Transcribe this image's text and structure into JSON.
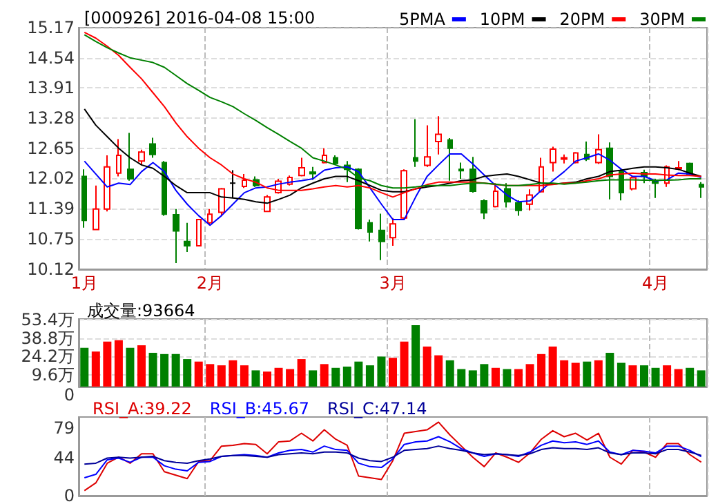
{
  "chart_data": [
    {
      "type": "candlestick",
      "title": "[000926] 2016-04-08 15:00",
      "categories": [
        "1月",
        null,
        null,
        null,
        null,
        null,
        null,
        null,
        null,
        null,
        null,
        "2月",
        null,
        null,
        null,
        null,
        null,
        null,
        null,
        null,
        null,
        null,
        null,
        null,
        null,
        null,
        null,
        "3月",
        null,
        null,
        null,
        null,
        null,
        null,
        null,
        null,
        null,
        null,
        null,
        null,
        null,
        null,
        null,
        null,
        null,
        null,
        null,
        null,
        null,
        null,
        "4月",
        null,
        null,
        null,
        null
      ],
      "ohlc": [
        [
          12.06,
          12.21,
          10.99,
          11.14
        ],
        [
          10.95,
          11.87,
          10.94,
          11.38
        ],
        [
          11.38,
          12.5,
          11.33,
          12.26
        ],
        [
          12.13,
          12.84,
          12.06,
          12.5
        ],
        [
          12.21,
          12.97,
          11.97,
          12.01
        ],
        [
          12.38,
          12.62,
          12.3,
          12.57
        ],
        [
          12.74,
          12.87,
          12.45,
          12.52
        ],
        [
          12.35,
          12.38,
          11.24,
          11.27
        ],
        [
          11.26,
          11.38,
          10.25,
          10.92
        ],
        [
          10.7,
          11.09,
          10.48,
          10.61
        ],
        [
          10.61,
          11.17,
          10.6,
          11.16
        ],
        [
          11.09,
          11.38,
          11.04,
          11.27
        ],
        [
          11.31,
          11.82,
          11.24,
          11.8
        ],
        [
          11.92,
          12.19,
          11.61,
          11.92
        ],
        [
          11.85,
          12.11,
          11.82,
          11.98
        ],
        [
          11.99,
          12.06,
          11.84,
          11.87
        ],
        [
          11.33,
          11.67,
          11.33,
          11.63
        ],
        [
          11.72,
          12.01,
          11.7,
          11.96
        ],
        [
          11.9,
          12.08,
          11.87,
          12.04
        ],
        [
          12.08,
          12.45,
          12.06,
          12.24
        ],
        [
          12.15,
          12.26,
          11.99,
          12.12
        ],
        [
          12.35,
          12.65,
          12.33,
          12.5
        ],
        [
          12.45,
          12.5,
          12.3,
          12.33
        ],
        [
          12.29,
          12.38,
          11.94,
          12.21
        ],
        [
          12.21,
          12.23,
          10.95,
          10.97
        ],
        [
          11.09,
          11.16,
          10.7,
          10.9
        ],
        [
          10.93,
          11.28,
          10.31,
          10.7
        ],
        [
          10.78,
          11.19,
          10.61,
          11.07
        ],
        [
          11.19,
          12.21,
          11.17,
          12.18
        ],
        [
          12.45,
          13.26,
          12.26,
          12.38
        ],
        [
          12.29,
          13.13,
          12.26,
          12.47
        ],
        [
          12.79,
          13.32,
          12.52,
          12.94
        ],
        [
          12.82,
          12.86,
          11.97,
          12.65
        ],
        [
          12.21,
          12.35,
          12.01,
          12.18
        ],
        [
          12.21,
          12.47,
          11.72,
          11.75
        ],
        [
          11.55,
          11.58,
          11.17,
          11.3
        ],
        [
          11.43,
          11.92,
          11.41,
          11.75
        ],
        [
          11.8,
          11.92,
          11.41,
          11.53
        ],
        [
          11.51,
          11.56,
          11.24,
          11.35
        ],
        [
          11.48,
          11.79,
          11.35,
          11.67
        ],
        [
          11.74,
          12.45,
          11.72,
          12.26
        ],
        [
          12.35,
          12.68,
          12.16,
          12.63
        ],
        [
          12.42,
          12.52,
          12.33,
          12.45
        ],
        [
          12.35,
          12.57,
          12.33,
          12.55
        ],
        [
          12.52,
          12.79,
          12.38,
          12.42
        ],
        [
          12.35,
          12.94,
          12.32,
          12.62
        ],
        [
          12.65,
          12.77,
          11.58,
          12.06
        ],
        [
          12.18,
          12.21,
          11.56,
          11.72
        ],
        [
          11.8,
          12.06,
          11.77,
          12.03
        ],
        [
          12.14,
          12.2,
          11.92,
          12.06
        ],
        [
          11.97,
          12.01,
          11.61,
          11.92
        ],
        [
          11.92,
          12.29,
          11.84,
          12.26
        ],
        [
          12.22,
          12.38,
          12.19,
          12.24
        ],
        [
          12.33,
          12.35,
          12.09,
          12.11
        ],
        [
          11.89,
          11.94,
          11.61,
          11.84
        ]
      ],
      "colors": [
        "#008000",
        "#ff0000",
        "#ff0000",
        "#ff0000",
        "#008000",
        "#ff0000",
        "#008000",
        "#008000",
        "#008000",
        "#008000",
        "#ff0000",
        "#ff0000",
        "#ff0000",
        "#000000",
        "#ff0000",
        "#008000",
        "#ff0000",
        "#ff0000",
        "#ff0000",
        "#ff0000",
        "#008000",
        "#ff0000",
        "#008000",
        "#008000",
        "#008000",
        "#008000",
        "#008000",
        "#ff0000",
        "#ff0000",
        "#008000",
        "#ff0000",
        "#ff0000",
        "#008000",
        "#008000",
        "#008000",
        "#008000",
        "#ff0000",
        "#008000",
        "#008000",
        "#ff0000",
        "#ff0000",
        "#ff0000",
        "#ff0000",
        "#ff0000",
        "#008000",
        "#ff0000",
        "#008000",
        "#008000",
        "#ff0000",
        "#008000",
        "#008000",
        "#ff0000",
        "#ff0000",
        "#008000",
        "#008000"
      ],
      "series": [
        {
          "type": "line",
          "name": "5PMA",
          "color": "#0000ff",
          "values": [
            12.38,
            12.11,
            11.84,
            11.92,
            11.89,
            12.16,
            12.35,
            12.16,
            11.77,
            11.48,
            11.24,
            11.04,
            11.24,
            11.48,
            11.72,
            11.82,
            11.84,
            11.9,
            11.94,
            11.97,
            12.01,
            12.19,
            12.24,
            12.26,
            12.16,
            11.82,
            11.48,
            11.16,
            11.16,
            11.63,
            12.06,
            12.3,
            12.53,
            12.53,
            12.32,
            12.09,
            11.87,
            11.67,
            11.53,
            11.55,
            11.77,
            11.97,
            12.16,
            12.38,
            12.45,
            12.53,
            12.4,
            12.21,
            12.06,
            12.06,
            11.97,
            11.99,
            12.13,
            12.11,
            12.04
          ]
        },
        {
          "type": "line",
          "name": "10PM",
          "color": "#000000",
          "values": [
            13.47,
            13.13,
            12.89,
            12.65,
            12.45,
            12.3,
            12.23,
            12.06,
            11.87,
            11.72,
            11.72,
            11.72,
            11.63,
            11.61,
            11.58,
            11.53,
            11.5,
            11.58,
            11.67,
            11.82,
            11.92,
            12.01,
            12.06,
            12.06,
            11.97,
            11.87,
            11.77,
            11.74,
            11.74,
            11.8,
            11.84,
            11.87,
            11.92,
            11.97,
            11.99,
            12.06,
            12.09,
            12.11,
            12.06,
            11.99,
            11.92,
            11.9,
            11.92,
            11.94,
            12.01,
            12.06,
            12.16,
            12.19,
            12.23,
            12.26,
            12.26,
            12.24,
            12.21,
            12.13,
            12.06
          ]
        },
        {
          "type": "line",
          "name": "20PM",
          "color": "#ff0000",
          "values": [
            15.07,
            14.95,
            14.78,
            14.59,
            14.34,
            14.1,
            13.81,
            13.52,
            13.18,
            12.89,
            12.65,
            12.45,
            12.3,
            12.11,
            12.01,
            11.94,
            11.82,
            11.77,
            11.77,
            11.77,
            11.8,
            11.84,
            11.87,
            11.84,
            11.87,
            11.82,
            11.72,
            11.63,
            11.72,
            11.8,
            11.89,
            11.94,
            11.94,
            11.94,
            11.94,
            11.92,
            11.89,
            11.87,
            11.87,
            11.87,
            11.87,
            11.89,
            11.92,
            11.92,
            11.97,
            12.01,
            12.09,
            12.11,
            12.13,
            12.11,
            12.11,
            12.09,
            12.08,
            12.08,
            12.06
          ]
        },
        {
          "type": "line",
          "name": "30PM",
          "color": "#008000",
          "values": [
            15.02,
            14.88,
            14.75,
            14.64,
            14.54,
            14.49,
            14.44,
            14.34,
            14.17,
            14.0,
            13.86,
            13.71,
            13.62,
            13.52,
            13.37,
            13.23,
            13.08,
            12.94,
            12.79,
            12.65,
            12.45,
            12.38,
            12.3,
            12.21,
            12.03,
            11.97,
            11.87,
            11.82,
            11.82,
            11.84,
            11.87,
            11.87,
            11.87,
            11.9,
            11.92,
            11.92,
            11.9,
            11.87,
            11.87,
            11.89,
            11.92,
            11.92,
            11.9,
            11.92,
            11.94,
            11.97,
            11.99,
            11.99,
            11.99,
            11.98,
            11.98,
            11.98,
            11.99,
            12.01,
            12.01
          ]
        }
      ],
      "ylim": [
        10.12,
        15.17
      ],
      "yticks": [
        10.12,
        10.75,
        11.39,
        12.02,
        12.65,
        13.28,
        13.91,
        14.54,
        15.17
      ],
      "grid": true,
      "legend": "top right"
    },
    {
      "type": "bar",
      "annotations": [
        "成交量:93664"
      ],
      "categories": [
        null,
        null,
        null,
        null,
        null,
        null,
        null,
        null,
        null,
        null,
        null,
        null,
        null,
        null,
        null,
        null,
        null,
        null,
        null,
        null,
        null,
        null,
        null,
        null,
        null,
        null,
        null,
        null,
        null,
        null,
        null,
        null,
        null,
        null,
        null,
        null,
        null,
        null,
        null,
        null,
        null,
        null,
        null,
        null,
        null,
        null,
        null,
        null,
        null,
        null,
        null,
        null,
        null,
        null,
        null
      ],
      "values": [
        31,
        28,
        36,
        37,
        31,
        33,
        27,
        26,
        26,
        22,
        20,
        18,
        17,
        21,
        17,
        13,
        12,
        15,
        14,
        22,
        13,
        18,
        15,
        16,
        20,
        17,
        24,
        23,
        36,
        49,
        32,
        25,
        21,
        14,
        13,
        18,
        15,
        14,
        14,
        18,
        26,
        32,
        21,
        19,
        20,
        21,
        27,
        19,
        17,
        17,
        15,
        17,
        14,
        15,
        13
      ],
      "colors": [
        "#008000",
        "#ff0000",
        "#ff0000",
        "#ff0000",
        "#008000",
        "#ff0000",
        "#008000",
        "#008000",
        "#008000",
        "#008000",
        "#ff0000",
        "#ff0000",
        "#ff0000",
        "#ff0000",
        "#ff0000",
        "#008000",
        "#ff0000",
        "#ff0000",
        "#ff0000",
        "#ff0000",
        "#008000",
        "#ff0000",
        "#008000",
        "#008000",
        "#008000",
        "#008000",
        "#008000",
        "#ff0000",
        "#ff0000",
        "#008000",
        "#ff0000",
        "#ff0000",
        "#008000",
        "#008000",
        "#008000",
        "#008000",
        "#ff0000",
        "#008000",
        "#ff0000",
        "#ff0000",
        "#ff0000",
        "#ff0000",
        "#ff0000",
        "#ff0000",
        "#008000",
        "#ff0000",
        "#008000",
        "#008000",
        "#ff0000",
        "#008000",
        "#008000",
        "#ff0000",
        "#ff0000",
        "#008000",
        "#008000"
      ],
      "ylim": [
        0,
        54
      ],
      "yticks": [
        0,
        {
          "value": 9.6,
          "label": "9.6万"
        },
        {
          "value": 24.2,
          "label": "24.2万"
        },
        {
          "value": 38.8,
          "label": "38.8万"
        },
        {
          "value": 53.4,
          "label": "53.4万"
        }
      ],
      "grid": true,
      "tick_labels": "y"
    },
    {
      "type": "line",
      "categories": [
        null,
        null,
        null,
        null,
        null,
        null,
        null,
        null,
        null,
        null,
        null,
        null,
        null,
        null,
        null,
        null,
        null,
        null,
        null,
        null,
        null,
        null,
        null,
        null,
        null,
        null,
        null,
        null,
        null,
        null,
        null,
        null,
        null,
        null,
        null,
        null,
        null,
        null,
        null,
        null,
        null,
        null,
        null,
        null,
        null,
        null,
        null,
        null,
        null,
        null,
        null,
        null,
        null,
        null,
        null
      ],
      "series": [
        {
          "name": "RSI_A:39.22",
          "color": "#dd0000",
          "values": [
            6,
            15,
            38,
            45,
            38,
            49,
            49,
            28,
            24,
            20,
            40,
            41,
            58,
            59,
            61,
            60,
            49,
            63,
            64,
            73,
            64,
            77,
            66,
            59,
            23,
            21,
            19,
            41,
            73,
            75,
            77,
            86,
            71,
            58,
            45,
            34,
            50,
            45,
            39,
            50,
            66,
            76,
            69,
            73,
            65,
            73,
            45,
            37,
            53,
            51,
            45,
            61,
            61,
            48,
            39.22
          ]
        },
        {
          "name": "RSI_B:45.67",
          "color": "#0000ff",
          "values": [
            21,
            25,
            42,
            44,
            39,
            45,
            45,
            35,
            31,
            29,
            39,
            40,
            46,
            47,
            48,
            47,
            45,
            50,
            53,
            54,
            51,
            58,
            54,
            53,
            38,
            34,
            33,
            43,
            60,
            63,
            64,
            69,
            63,
            55,
            50,
            46,
            49,
            48,
            46,
            51,
            59,
            64,
            62,
            63,
            60,
            64,
            51,
            48,
            53,
            52,
            50,
            58,
            58,
            53,
            45.67
          ]
        },
        {
          "name": "RSI_C:47.14",
          "color": "#000099",
          "values": [
            37,
            38,
            44,
            45,
            44,
            45,
            46,
            41,
            39,
            38,
            41,
            43,
            46,
            47,
            47,
            46,
            45,
            48,
            49,
            50,
            49,
            51,
            51,
            50,
            44,
            41,
            40,
            45,
            53,
            54,
            55,
            58,
            55,
            53,
            50,
            48,
            49,
            48,
            47,
            49,
            54,
            56,
            55,
            55,
            54,
            56,
            50,
            48,
            50,
            50,
            49,
            54,
            54,
            51,
            47.14
          ]
        }
      ],
      "ylim": [
        0,
        92
      ],
      "yticks": [
        0,
        44,
        79
      ],
      "grid": "x",
      "legend": "top left",
      "tick_labels": "y"
    }
  ]
}
